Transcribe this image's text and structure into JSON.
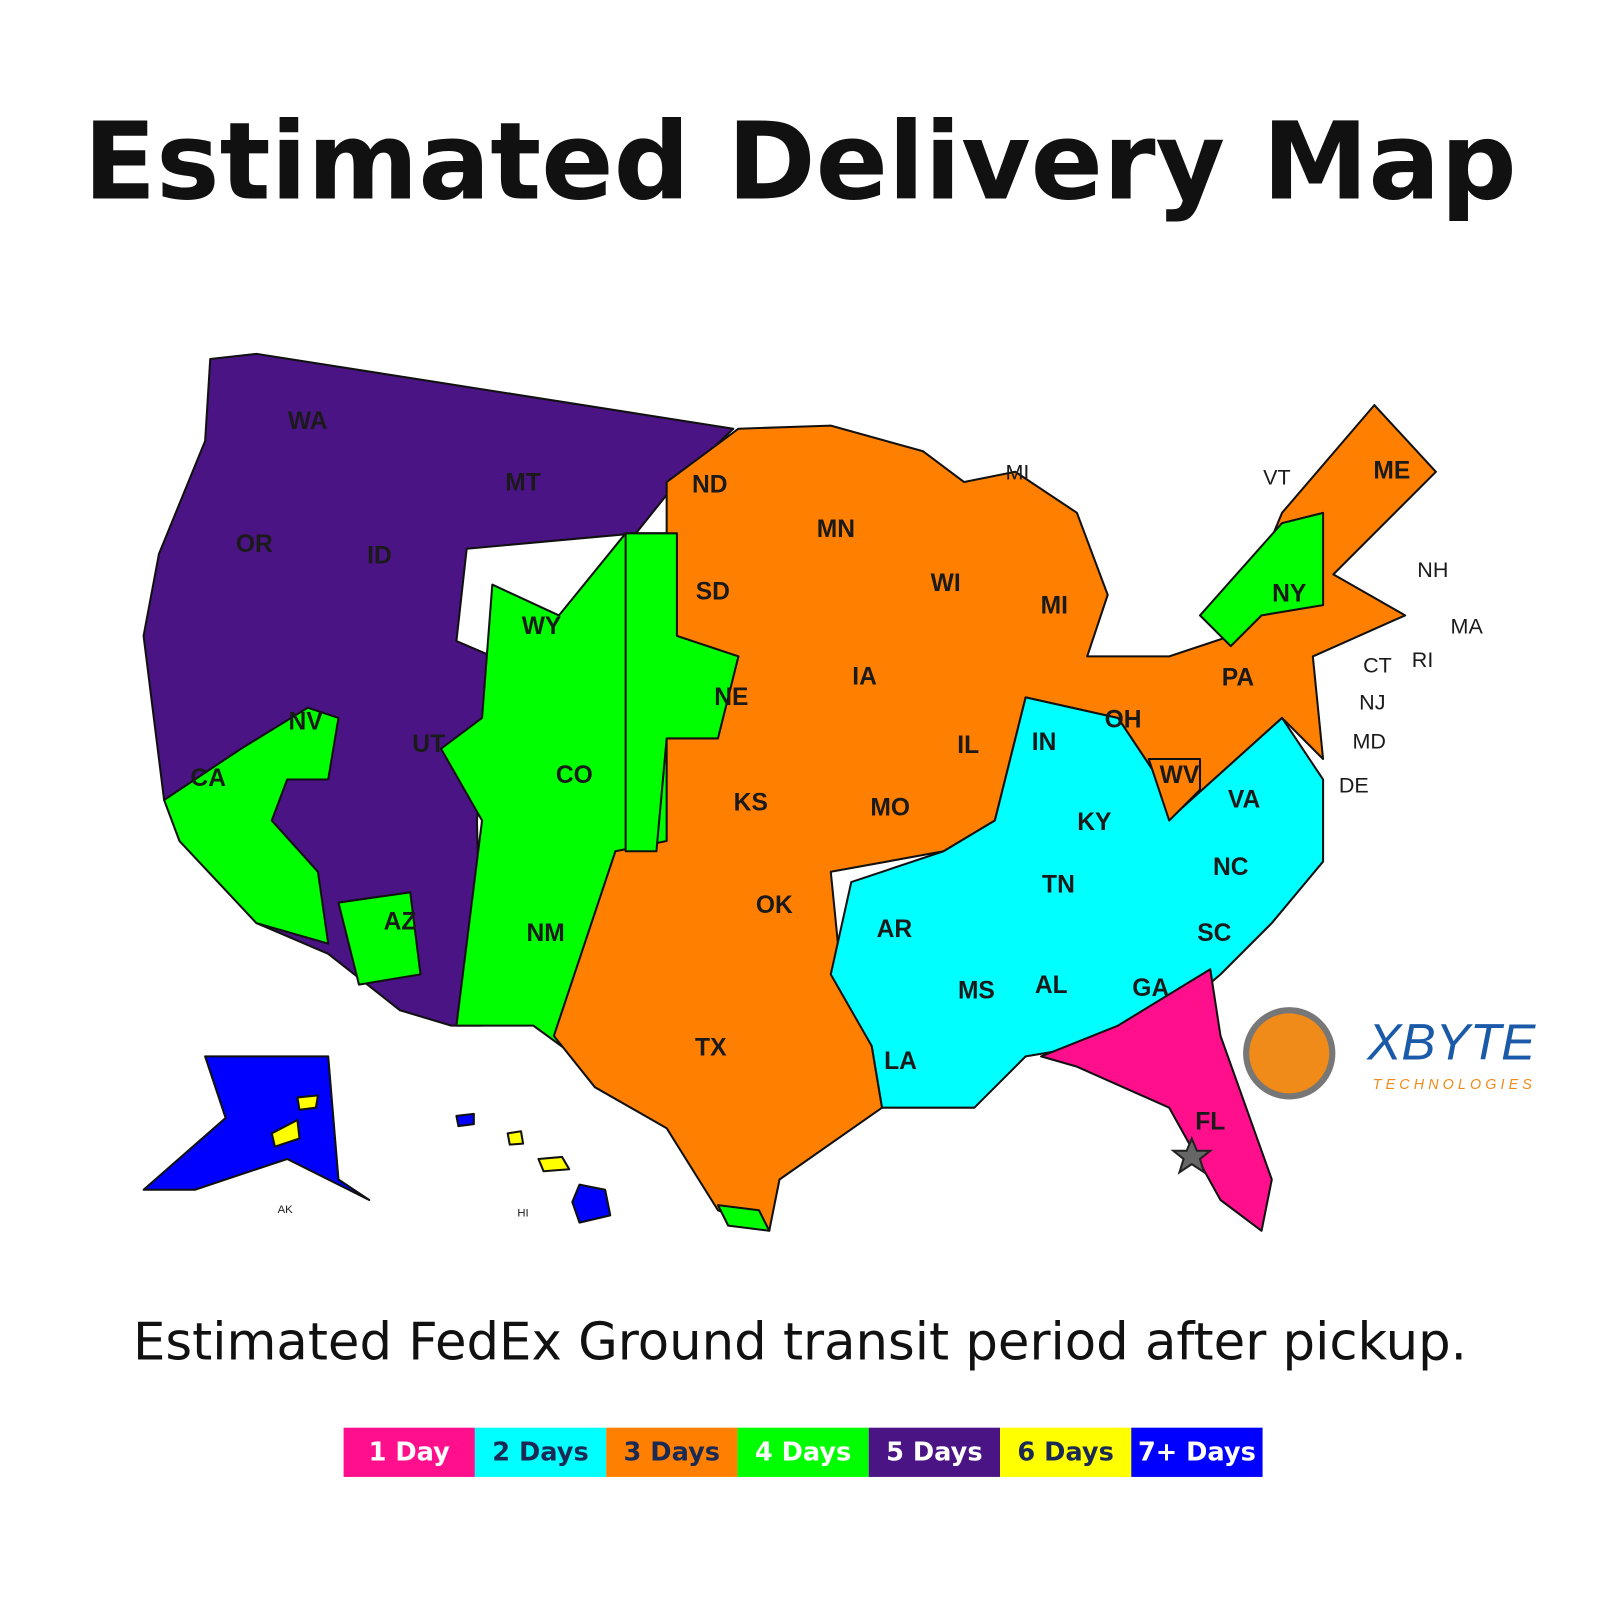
{
  "header": {
    "title": "Estimated Delivery Map",
    "subtitle": "Estimated FedEx Ground transit period after pickup."
  },
  "legend": [
    {
      "label": "1 Day",
      "color": "#ff0f8c"
    },
    {
      "label": "2 Days",
      "color": "#00ffff"
    },
    {
      "label": "3 Days",
      "color": "#ff8000"
    },
    {
      "label": "4 Days",
      "color": "#00ff00"
    },
    {
      "label": "5 Days",
      "color": "#4b1485"
    },
    {
      "label": "6 Days",
      "color": "#ffff00"
    },
    {
      "label": "7+ Days",
      "color": "#0000ff"
    }
  ],
  "states": [
    "WA",
    "MT",
    "OR",
    "ID",
    "ND",
    "MN",
    "MI",
    "VT",
    "ME",
    "NH",
    "MA",
    "RI",
    "CT",
    "NJ",
    "MD",
    "DE",
    "WI",
    "MI",
    "NY",
    "SD",
    "WY",
    "NE",
    "IA",
    "PA",
    "NV",
    "UT",
    "CA",
    "CO",
    "IL",
    "IN",
    "OH",
    "WV",
    "VA",
    "KS",
    "MO",
    "KY",
    "NC",
    "TN",
    "OK",
    "AR",
    "SC",
    "AZ",
    "NM",
    "MS",
    "AL",
    "GA",
    "TX",
    "LA",
    "FL",
    "AK",
    "HI"
  ],
  "logo": {
    "name": "XBYTE",
    "tagline": "TECHNOLOGIES"
  }
}
